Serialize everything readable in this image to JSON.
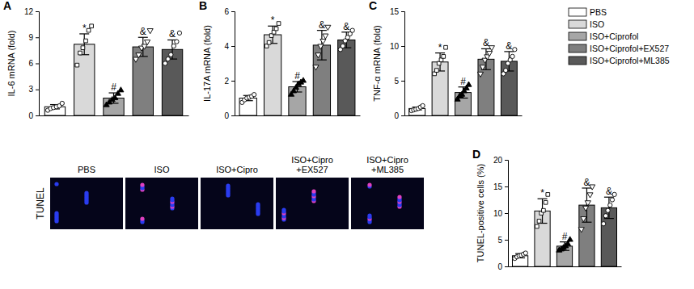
{
  "chart_data": [
    {
      "type": "bar",
      "title": "A",
      "y_label": "IL-6 mRNA (fold)",
      "categories": [
        null
      ],
      "ylim": [
        0,
        12
      ],
      "yticks": [
        0,
        3,
        6,
        9,
        12
      ],
      "series": [
        {
          "color": "#ffffff",
          "marker": "circle",
          "values": [
            1.0
          ],
          "error": [
            0.25
          ],
          "points": [
            0.6,
            0.8,
            0.9,
            1.0,
            1.1,
            1.4
          ]
        },
        {
          "color": "#d9d9d9",
          "marker": "square",
          "values": [
            8.2
          ],
          "error": [
            1.2
          ],
          "annotation": "*",
          "points": [
            5.8,
            7.2,
            7.8,
            8.6,
            9.8,
            10.3
          ]
        },
        {
          "color": "#a6a6a6",
          "marker": "triangle",
          "values": [
            2.0
          ],
          "error": [
            0.6
          ],
          "annotation": "#",
          "points": [
            1.2,
            1.5,
            1.8,
            2.0,
            2.5,
            2.9
          ]
        },
        {
          "color": "#7f7f7f",
          "marker": "triangle-down",
          "values": [
            7.9
          ],
          "error": [
            1.1
          ],
          "annotation": "&",
          "points": [
            6.5,
            7.0,
            7.8,
            8.0,
            8.5,
            9.8
          ]
        },
        {
          "color": "#595959",
          "marker": "circle",
          "values": [
            7.6
          ],
          "error": [
            1.1
          ],
          "annotation": "&",
          "points": [
            6.0,
            6.5,
            7.0,
            8.0,
            8.5,
            9.5
          ]
        }
      ]
    },
    {
      "type": "bar",
      "title": "B",
      "y_label": "IL-17A mRNA (fold)",
      "categories": [
        null
      ],
      "ylim": [
        0,
        6
      ],
      "yticks": [
        0,
        2,
        4,
        6
      ],
      "series": [
        {
          "color": "#ffffff",
          "marker": "circle",
          "values": [
            1.0
          ],
          "error": [
            0.15
          ],
          "points": [
            0.75,
            0.9,
            1.0,
            1.05,
            1.1,
            1.2
          ]
        },
        {
          "color": "#d9d9d9",
          "marker": "square",
          "values": [
            4.65
          ],
          "error": [
            0.5
          ],
          "annotation": "*",
          "points": [
            4.0,
            4.2,
            4.6,
            4.8,
            5.0,
            5.3
          ]
        },
        {
          "color": "#a6a6a6",
          "marker": "triangle",
          "values": [
            1.65
          ],
          "error": [
            0.3
          ],
          "annotation": "#",
          "points": [
            1.2,
            1.4,
            1.6,
            1.8,
            1.9,
            2.0
          ]
        },
        {
          "color": "#7f7f7f",
          "marker": "triangle-down",
          "values": [
            4.05
          ],
          "error": [
            0.85
          ],
          "annotation": "&",
          "points": [
            2.8,
            3.5,
            4.0,
            4.3,
            4.6,
            5.1
          ]
        },
        {
          "color": "#595959",
          "marker": "circle",
          "values": [
            4.35
          ],
          "error": [
            0.45
          ],
          "annotation": "&",
          "points": [
            3.8,
            4.0,
            4.3,
            4.5,
            4.7,
            4.9
          ]
        }
      ]
    },
    {
      "type": "bar",
      "title": "C",
      "y_label": "TNF-α mRNA (fold)",
      "categories": [
        null
      ],
      "ylim": [
        0,
        15
      ],
      "yticks": [
        0,
        5,
        10,
        15
      ],
      "legend": "right",
      "series": [
        {
          "name": "PBS",
          "color": "#ffffff",
          "marker": "circle",
          "values": [
            1.0
          ],
          "error": [
            0.2
          ],
          "points": [
            0.7,
            0.8,
            0.9,
            1.0,
            1.2,
            1.4
          ]
        },
        {
          "name": "ISO",
          "color": "#d9d9d9",
          "marker": "square",
          "values": [
            7.7
          ],
          "error": [
            1.3
          ],
          "annotation": "*",
          "points": [
            6.0,
            6.5,
            7.5,
            8.0,
            8.5,
            9.8
          ]
        },
        {
          "name": "ISO+Ciprofol",
          "color": "#a6a6a6",
          "marker": "triangle",
          "values": [
            3.3
          ],
          "error": [
            0.8
          ],
          "annotation": "#",
          "points": [
            2.3,
            2.8,
            3.0,
            3.5,
            3.9,
            4.4
          ]
        },
        {
          "name": "ISO+Ciprofol+EX527",
          "color": "#7f7f7f",
          "marker": "triangle-down",
          "values": [
            8.1
          ],
          "error": [
            1.5
          ],
          "annotation": "&",
          "points": [
            6.0,
            7.0,
            8.0,
            8.5,
            9.0,
            9.8
          ]
        },
        {
          "name": "ISO+Ciprofol+ML385",
          "color": "#595959",
          "marker": "circle",
          "values": [
            7.8
          ],
          "error": [
            1.4
          ],
          "annotation": "&",
          "points": [
            6.0,
            6.5,
            7.5,
            8.0,
            8.5,
            9.5
          ]
        }
      ]
    },
    {
      "type": "bar",
      "title": "D",
      "y_label": "TUNEL-positive cells (%)",
      "categories": [
        null
      ],
      "ylim": [
        0,
        20
      ],
      "yticks": [
        0,
        5,
        10,
        15,
        20
      ],
      "image_row_label": "TUNEL",
      "image_labels": [
        [
          "PBS"
        ],
        [
          "ISO"
        ],
        [
          "ISO+Cipro"
        ],
        [
          "ISO+Cipro",
          "+EX527"
        ],
        [
          "ISO+Cipro",
          "+ML385"
        ]
      ],
      "series": [
        {
          "color": "#ffffff",
          "marker": "circle",
          "values": [
            2.0
          ],
          "error": [
            0.4
          ],
          "points": [
            1.5,
            1.8,
            2.0,
            2.1,
            2.3,
            2.5
          ]
        },
        {
          "color": "#d9d9d9",
          "marker": "square",
          "values": [
            10.4
          ],
          "error": [
            2.3
          ],
          "annotation": "*",
          "points": [
            7.5,
            8.5,
            10.0,
            10.5,
            12.0,
            13.5
          ]
        },
        {
          "color": "#a6a6a6",
          "marker": "triangle",
          "values": [
            3.8
          ],
          "error": [
            0.8
          ],
          "annotation": "#",
          "points": [
            3.0,
            3.2,
            3.5,
            3.8,
            4.2,
            5.0
          ]
        },
        {
          "color": "#7f7f7f",
          "marker": "triangle-down",
          "values": [
            11.5
          ],
          "error": [
            3.2
          ],
          "annotation": "&",
          "points": [
            7.0,
            9.0,
            11.0,
            12.0,
            13.5,
            15.0
          ]
        },
        {
          "color": "#595959",
          "marker": "circle",
          "values": [
            11.0
          ],
          "error": [
            2.0
          ],
          "annotation": "&",
          "points": [
            8.0,
            9.5,
            10.5,
            11.5,
            12.5,
            13.5
          ]
        }
      ]
    }
  ]
}
